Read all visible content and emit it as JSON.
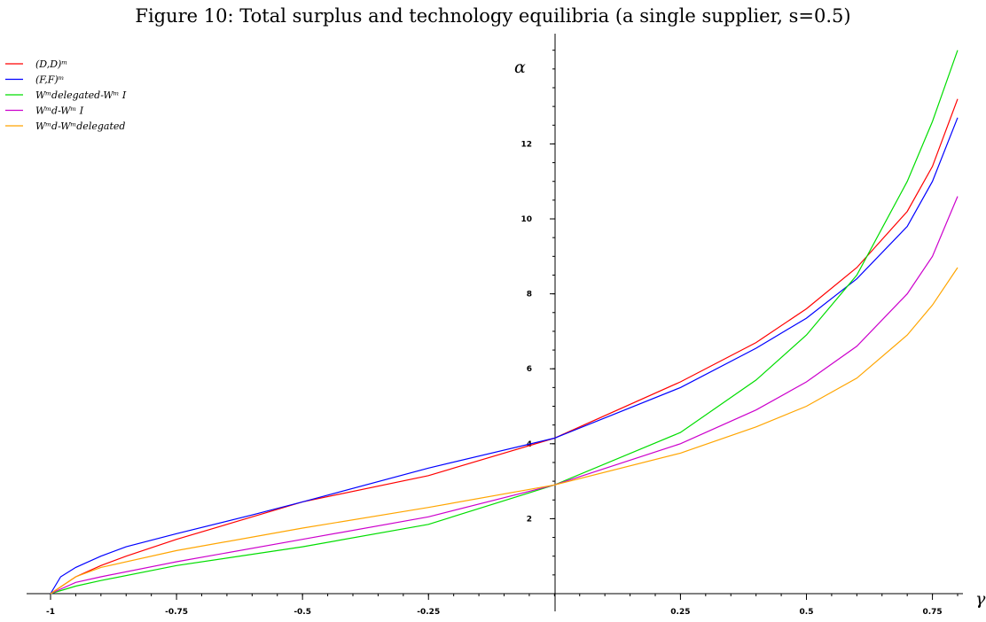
{
  "figure": {
    "title": "Figure 10: Total surplus and technology equilibria (a single supplier, s=0.5)"
  },
  "chart_data": {
    "type": "line",
    "title": "Figure 10: Total surplus and technology equilibria (a single supplier, s=0.5)",
    "xlabel": "γ",
    "ylabel": "α",
    "xlim": [
      -1,
      0.8
    ],
    "ylim": [
      0,
      14.8
    ],
    "x_ticks": [
      -1,
      -0.75,
      -0.5,
      -0.25,
      0.25,
      0.5,
      0.75
    ],
    "x_tick_labels": [
      "-1",
      "-0.75",
      "-0.5",
      "-0.25",
      "0.25",
      "0.5",
      "0.75"
    ],
    "y_ticks": [
      2,
      4,
      6,
      8,
      10,
      12
    ],
    "y_tick_labels": [
      "2",
      "4",
      "6",
      "8",
      "10",
      "12"
    ],
    "grid": false,
    "legend_position": "top-left",
    "series": [
      {
        "name": "(D,D)ᵐ",
        "color": "#ff0000",
        "x": [
          -1,
          -0.95,
          -0.9,
          -0.85,
          -0.75,
          -0.65,
          -0.5,
          -0.25,
          0,
          0.25,
          0.4,
          0.5,
          0.6,
          0.7,
          0.75,
          0.8
        ],
        "y": [
          0,
          0.45,
          0.75,
          1.0,
          1.45,
          1.85,
          2.45,
          3.15,
          4.15,
          5.65,
          6.7,
          7.6,
          8.7,
          10.2,
          11.4,
          13.2
        ]
      },
      {
        "name": "(F,F)ᵐ",
        "color": "#0000ff",
        "x": [
          -1,
          -0.98,
          -0.95,
          -0.9,
          -0.85,
          -0.75,
          -0.6,
          -0.5,
          -0.25,
          0,
          0.25,
          0.4,
          0.5,
          0.6,
          0.7,
          0.75,
          0.8
        ],
        "y": [
          0,
          0.45,
          0.7,
          1.0,
          1.25,
          1.6,
          2.1,
          2.45,
          3.35,
          4.15,
          5.5,
          6.55,
          7.35,
          8.4,
          9.8,
          11.0,
          12.7
        ]
      },
      {
        "name": "Wᵐdelegated-Wᵐ I",
        "color": "#00dd00",
        "x": [
          -1,
          -0.95,
          -0.9,
          -0.75,
          -0.5,
          -0.25,
          0,
          0.25,
          0.4,
          0.5,
          0.6,
          0.7,
          0.75,
          0.8
        ],
        "y": [
          0,
          0.2,
          0.35,
          0.75,
          1.25,
          1.85,
          2.9,
          4.3,
          5.7,
          6.9,
          8.5,
          11.0,
          12.6,
          14.5
        ]
      },
      {
        "name": "Wᵐd-Wᵐ I",
        "color": "#cc00cc",
        "x": [
          -1,
          -0.95,
          -0.9,
          -0.75,
          -0.5,
          -0.25,
          0,
          0.25,
          0.4,
          0.5,
          0.6,
          0.7,
          0.75,
          0.8
        ],
        "y": [
          0,
          0.3,
          0.45,
          0.85,
          1.45,
          2.05,
          2.9,
          4.0,
          4.9,
          5.65,
          6.6,
          8.0,
          9.0,
          10.6
        ]
      },
      {
        "name": "Wᵐd-Wᵐdelegated",
        "color": "#ffa500",
        "x": [
          -1,
          -0.95,
          -0.9,
          -0.75,
          -0.5,
          -0.25,
          0,
          0.25,
          0.4,
          0.5,
          0.6,
          0.7,
          0.75,
          0.8
        ],
        "y": [
          0,
          0.45,
          0.7,
          1.15,
          1.75,
          2.3,
          2.9,
          3.75,
          4.45,
          5.0,
          5.75,
          6.9,
          7.7,
          8.7
        ]
      }
    ]
  }
}
